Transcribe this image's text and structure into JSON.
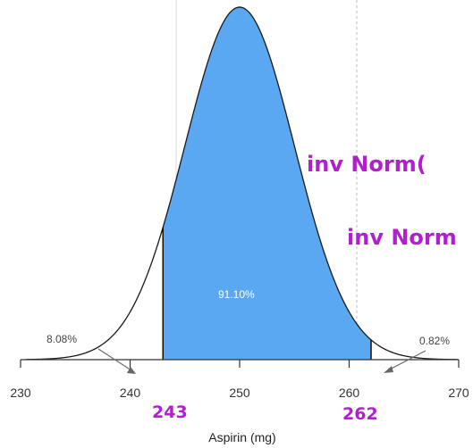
{
  "chart_data": {
    "type": "area",
    "distribution": "normal",
    "mean": 250,
    "sd": 5,
    "xlabel": "Aspirin (mg)",
    "xlim": [
      230,
      270
    ],
    "xticks": [
      "230",
      "240",
      "250",
      "260",
      "270"
    ],
    "shaded_interval": [
      243,
      262
    ],
    "regions": [
      {
        "label": "8.08%",
        "value": 8.08,
        "side": "left tail"
      },
      {
        "label": "91.10%",
        "value": 91.1,
        "side": "middle"
      },
      {
        "label": "0.82%",
        "value": 0.82,
        "side": "right tail"
      }
    ],
    "fill_color": "#5aa8f2",
    "curve_color": "#1a1a1a"
  },
  "annotations": {
    "lower_bound": "243",
    "upper_bound": "262",
    "note_1": "inv Norm(",
    "note_2": "inv Norm",
    "ink_color": "#b21fd1"
  }
}
